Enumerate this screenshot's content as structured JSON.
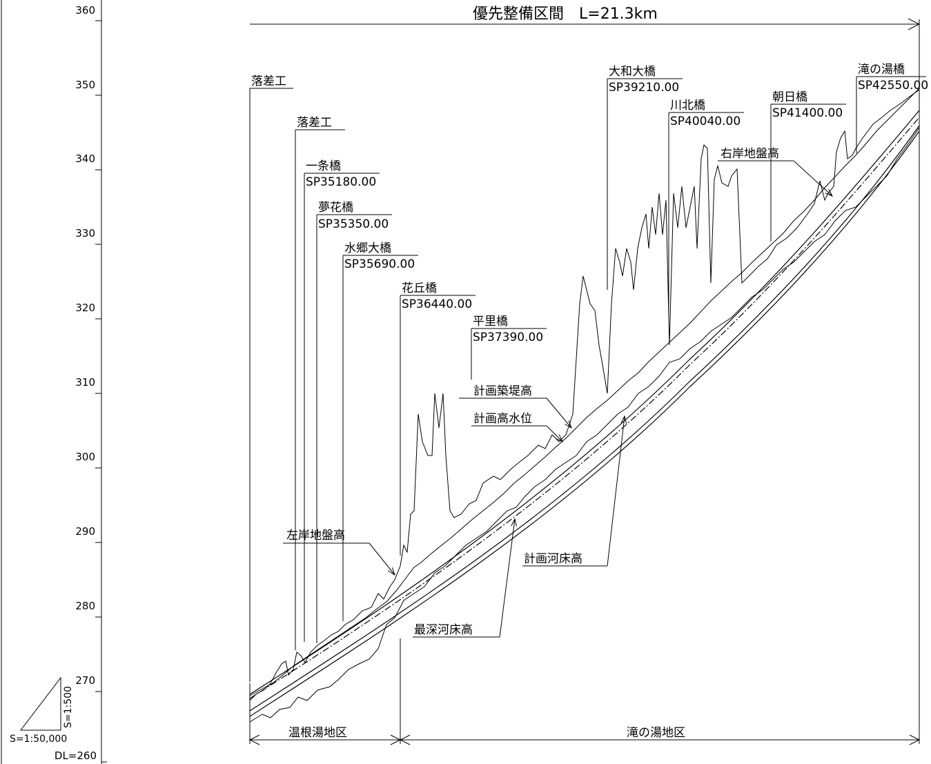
{
  "title": "優先整備区間　L=21.3km",
  "y_axis": {
    "ticks": [
      "360",
      "350",
      "340",
      "330",
      "320",
      "310",
      "300",
      "290",
      "280",
      "270"
    ],
    "datum": "DL=260"
  },
  "scale": {
    "horizontal": "S=1:50,000",
    "vertical": "S=1:500"
  },
  "structures": [
    {
      "name": "落差工",
      "sp": ""
    },
    {
      "name": "落差工",
      "sp": ""
    },
    {
      "name": "一条橋",
      "sp": "SP35180.00"
    },
    {
      "name": "夢花橋",
      "sp": "SP35350.00"
    },
    {
      "name": "水郷大橋",
      "sp": "SP35690.00"
    },
    {
      "name": "花丘橋",
      "sp": "SP36440.00"
    },
    {
      "name": "平里橋",
      "sp": "SP37390.00"
    },
    {
      "name": "大和大橋",
      "sp": "SP39210.00"
    },
    {
      "name": "川北橋",
      "sp": "SP40040.00"
    },
    {
      "name": "朝日橋",
      "sp": "SP41400.00"
    },
    {
      "name": "滝の湯橋",
      "sp": "SP42550.00"
    }
  ],
  "line_labels": {
    "left_bank": "左岸地盤高",
    "right_bank": "右岸地盤高",
    "levee": "計画築堤高",
    "hwl": "計画高水位",
    "bed": "計画河床高",
    "deepest": "最深河床高"
  },
  "districts": [
    "温根湯地区",
    "滝の湯地区"
  ]
}
